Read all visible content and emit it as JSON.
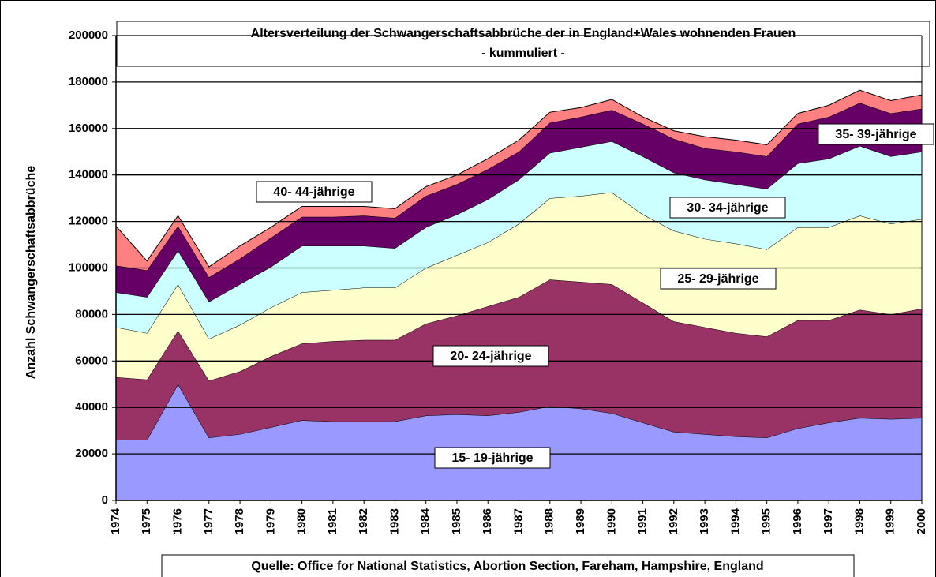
{
  "chart_data": {
    "type": "stacked_area",
    "title": "Altersverteilung der Schwangerschaftsabbrüche der in England+Wales wohnenden Frauen",
    "subtitle": "- kummuliert -",
    "y_label": "Anzahl Schwangerschaftsabbrüche",
    "source": "Quelle: Office for National Statistics, Abortion Section, Fareham, Hampshire, England",
    "categories": [
      "1974",
      "1975",
      "1976",
      "1977",
      "1978",
      "1979",
      "1980",
      "1981",
      "1982",
      "1983",
      "1984",
      "1985",
      "1986",
      "1987",
      "1988",
      "1989",
      "1990",
      "1991",
      "1992",
      "1993",
      "1994",
      "1995",
      "1996",
      "1997",
      "1998",
      "1999",
      "2000"
    ],
    "ylim": [
      0,
      200000
    ],
    "yticks": [
      0,
      20000,
      40000,
      60000,
      80000,
      100000,
      120000,
      140000,
      160000,
      180000,
      200000
    ],
    "grid": true,
    "series": [
      {
        "name": "15- 19-jährige",
        "color": "#9999ff",
        "values": [
          26000,
          26000,
          50000,
          27000,
          28500,
          31500,
          34500,
          34000,
          34000,
          34000,
          36500,
          37000,
          36500,
          38000,
          40500,
          39500,
          37500,
          33500,
          29500,
          28500,
          27500,
          27000,
          31000,
          33500,
          35500,
          35000,
          35500
        ]
      },
      {
        "name": "20- 24-jährige",
        "color": "#993366",
        "values": [
          27000,
          26000,
          23000,
          24500,
          27000,
          30500,
          33000,
          34500,
          35000,
          35000,
          39500,
          42500,
          47000,
          49500,
          54500,
          54500,
          55500,
          51500,
          47500,
          46000,
          44500,
          43500,
          46500,
          44000,
          46500,
          45000,
          47000
        ]
      },
      {
        "name": "25- 29-jährige",
        "color": "#ffffcc",
        "values": [
          21500,
          20000,
          20000,
          18000,
          20000,
          21000,
          22000,
          22000,
          22500,
          22500,
          24000,
          26000,
          27500,
          31500,
          35000,
          37000,
          39500,
          38000,
          39000,
          38000,
          38500,
          37500,
          40000,
          40000,
          40500,
          39000,
          38500
        ]
      },
      {
        "name": "30- 34-jährige",
        "color": "#ccffff",
        "values": [
          15000,
          15500,
          14500,
          16000,
          17500,
          17500,
          20000,
          19000,
          18000,
          17000,
          17500,
          17500,
          18500,
          19000,
          19500,
          21000,
          22000,
          25000,
          25000,
          25500,
          25500,
          26000,
          27500,
          29500,
          30000,
          29000,
          29000
        ]
      },
      {
        "name": "35- 39-jährige",
        "color": "#660066",
        "values": [
          11500,
          11500,
          10500,
          10500,
          11000,
          12500,
          12500,
          12500,
          13000,
          13000,
          13500,
          13000,
          13000,
          12000,
          13000,
          13000,
          13500,
          14000,
          14500,
          13500,
          14000,
          14000,
          17000,
          18000,
          18500,
          18500,
          18500
        ]
      },
      {
        "name": "40- 44-jährige",
        "color": "#ff8080",
        "values": [
          17000,
          4000,
          4500,
          4500,
          5500,
          4500,
          4500,
          4500,
          4000,
          4000,
          4000,
          4000,
          4500,
          5000,
          4500,
          4000,
          4500,
          3000,
          3500,
          5000,
          5000,
          5000,
          4500,
          5000,
          5500,
          5500,
          6000
        ]
      }
    ]
  }
}
